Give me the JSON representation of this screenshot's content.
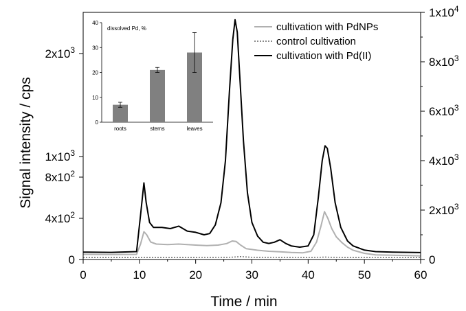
{
  "chart_data": [
    {
      "type": "line",
      "xlabel": "Time / min",
      "ylabel": "Signal intensity / cps",
      "xlim": [
        0,
        60
      ],
      "ylim_left": [
        0,
        2400
      ],
      "ylim_right": [
        0,
        10000
      ],
      "x_ticks": [
        0,
        10,
        20,
        30,
        40,
        50,
        60
      ],
      "x_tick_labels": [
        "0",
        "10",
        "20",
        "30",
        "40",
        "50",
        "60"
      ],
      "y_left_ticks": [
        0,
        400,
        800,
        1000,
        2000
      ],
      "y_left_tick_labels": [
        {
          "base": "0",
          "exp": ""
        },
        {
          "base": "4x10",
          "exp": "2"
        },
        {
          "base": "8x10",
          "exp": "2"
        },
        {
          "base": "1x10",
          "exp": "3"
        },
        {
          "base": "2x10",
          "exp": "3"
        }
      ],
      "y_right_ticks": [
        0,
        2000,
        4000,
        6000,
        8000,
        10000
      ],
      "y_right_tick_labels": [
        {
          "base": "0",
          "exp": ""
        },
        {
          "base": "2x10",
          "exp": "3"
        },
        {
          "base": "4x10",
          "exp": "3"
        },
        {
          "base": "6x10",
          "exp": "3"
        },
        {
          "base": "8x10",
          "exp": "3"
        },
        {
          "base": "1x10",
          "exp": "4"
        }
      ],
      "legend_position": "top-right",
      "series": [
        {
          "name": "cultivation with PdNPs",
          "axis": "left",
          "color": "#b0b0b0",
          "style": "solid",
          "x": [
            0,
            5,
            9.5,
            10.2,
            10.8,
            11.3,
            12,
            13,
            15,
            17,
            20,
            22,
            24,
            25.5,
            26.5,
            27.2,
            28,
            29,
            31,
            33,
            35,
            37,
            39,
            40.5,
            41.5,
            42.3,
            42.9,
            43.5,
            44.2,
            45,
            46,
            47,
            48,
            50,
            52,
            55,
            58,
            60
          ],
          "y": [
            50,
            48,
            50,
            150,
            270,
            240,
            170,
            150,
            145,
            150,
            140,
            135,
            140,
            155,
            180,
            175,
            140,
            105,
            90,
            80,
            75,
            68,
            65,
            80,
            170,
            330,
            465,
            400,
            300,
            220,
            165,
            120,
            90,
            60,
            45,
            42,
            38,
            35
          ]
        },
        {
          "name": "control cultivation",
          "axis": "left",
          "color": "#444444",
          "style": "dotted",
          "x": [
            0,
            10,
            20,
            26,
            28,
            30,
            40,
            43,
            46,
            50,
            60
          ],
          "y": [
            20,
            20,
            20,
            22,
            28,
            22,
            20,
            24,
            20,
            20,
            18
          ]
        },
        {
          "name": "cultivation with Pd(II)",
          "axis": "right",
          "color": "#000000",
          "style": "solid",
          "x": [
            0,
            5,
            9.5,
            10.2,
            10.8,
            11.2,
            11.8,
            12.5,
            14,
            15.5,
            17,
            18.5,
            20,
            21.5,
            22.5,
            23.5,
            24.5,
            25.3,
            26,
            26.6,
            27,
            27.4,
            27.9,
            28.5,
            29.2,
            30,
            31,
            32,
            33,
            34,
            35,
            36,
            37,
            38.5,
            40,
            41,
            41.8,
            42.5,
            43,
            43.4,
            44,
            44.8,
            45.8,
            47,
            48,
            50,
            52,
            55,
            58,
            60
          ],
          "y": [
            300,
            290,
            320,
            1800,
            3100,
            2300,
            1500,
            1300,
            1300,
            1250,
            1350,
            1150,
            1100,
            1000,
            1050,
            1400,
            2300,
            4000,
            6800,
            8900,
            9700,
            9200,
            7200,
            4800,
            2700,
            1500,
            950,
            700,
            650,
            700,
            800,
            650,
            550,
            500,
            550,
            1000,
            2500,
            4000,
            4600,
            4500,
            3700,
            2300,
            1300,
            750,
            550,
            380,
            320,
            300,
            290,
            280
          ]
        }
      ]
    },
    {
      "type": "bar",
      "title": "dissolved Pd, %",
      "categories": [
        "roots",
        "stems",
        "leaves"
      ],
      "values": [
        7,
        21,
        28
      ],
      "errors": [
        1,
        1,
        8
      ],
      "ylim": [
        0,
        40
      ],
      "y_ticks": [
        0,
        10,
        20,
        30,
        40
      ],
      "y_tick_labels": [
        "0",
        "10",
        "20",
        "30",
        "40"
      ],
      "color": "#808080"
    }
  ]
}
